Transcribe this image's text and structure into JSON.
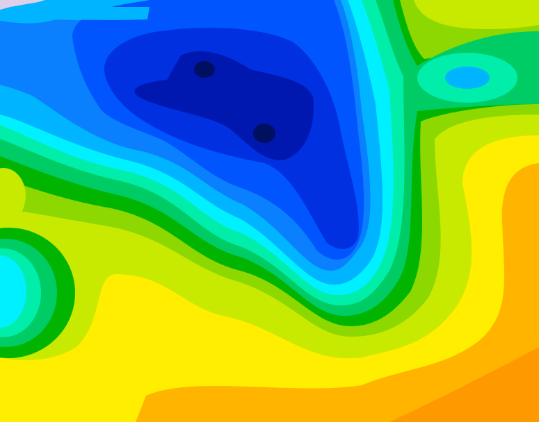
{
  "map": {
    "kind": "filled-contour-field",
    "palette": {
      "dark_orange": "#ff9900",
      "orange": "#ffb400",
      "yellow": "#ffee00",
      "yellow_green": "#c8ea00",
      "light_green": "#8cd800",
      "green": "#00b400",
      "green_cyan": "#00cc66",
      "aquamarine": "#00eeaa",
      "cyan": "#00f0ff",
      "sky_blue": "#00b4ff",
      "blue": "#0a80ff",
      "medium_blue": "#0055ff",
      "deep_blue": "#0030e0",
      "navy": "#0018b0",
      "darkest_navy": "#001060",
      "lavender": "#ddd0e8"
    }
  }
}
